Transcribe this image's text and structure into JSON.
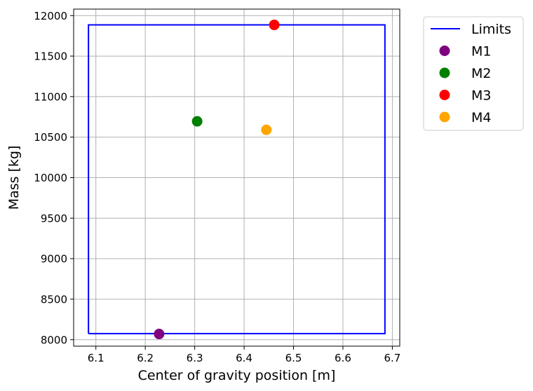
{
  "chart_data": {
    "type": "scatter",
    "xlabel": "Center of gravity position [m]",
    "ylabel": "Mass [kg]",
    "xlim": [
      6.055,
      6.715
    ],
    "ylim": [
      7920,
      12080
    ],
    "x_ticks": [
      "6.1",
      "6.2",
      "6.3",
      "6.4",
      "6.5",
      "6.6",
      "6.7"
    ],
    "y_ticks": [
      "8000",
      "8500",
      "9000",
      "9500",
      "10000",
      "10500",
      "11000",
      "11500",
      "12000"
    ],
    "grid": true,
    "legend_position": "outside-right",
    "limits": {
      "name": "Limits",
      "color": "#0000ff",
      "x": [
        6.085,
        6.685,
        6.685,
        6.085,
        6.085
      ],
      "y": [
        8075,
        8075,
        11885,
        11885,
        8075
      ]
    },
    "series": [
      {
        "name": "M1",
        "x": 6.228,
        "y": 8070,
        "color": "#800080"
      },
      {
        "name": "M2",
        "x": 6.305,
        "y": 10695,
        "color": "#008000"
      },
      {
        "name": "M3",
        "x": 6.461,
        "y": 11885,
        "color": "#ff0000"
      },
      {
        "name": "M4",
        "x": 6.445,
        "y": 10590,
        "color": "#ffa500"
      }
    ]
  }
}
